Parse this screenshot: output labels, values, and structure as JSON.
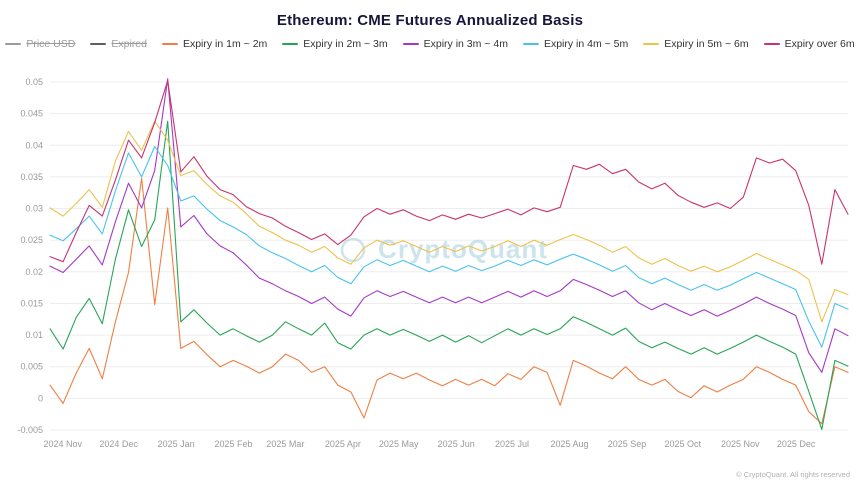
{
  "title": "Ethereum: CME Futures Annualized Basis",
  "watermark": "CryptoQuant",
  "copyright": "© CryptoQuant. All rights reserved",
  "legend": [
    {
      "label": "Price USD",
      "color": "#9b9b9b",
      "disabled": true
    },
    {
      "label": "Expired",
      "color": "#5f5f5f",
      "disabled": true
    },
    {
      "label": "Expiry in 1m ~ 2m",
      "color": "#ef7f42",
      "disabled": false
    },
    {
      "label": "Expiry in 2m ~ 3m",
      "color": "#27a457",
      "disabled": false
    },
    {
      "label": "Expiry in 3m ~ 4m",
      "color": "#a637c6",
      "disabled": false
    },
    {
      "label": "Expiry in 4m ~ 5m",
      "color": "#49c3ee",
      "disabled": false
    },
    {
      "label": "Expiry in 5m ~ 6m",
      "color": "#eec14e",
      "disabled": false
    },
    {
      "label": "Expiry over 6m",
      "color": "#c9336f",
      "disabled": false
    }
  ],
  "chart_data": {
    "type": "line",
    "title": "Ethereum: CME Futures Annualized Basis",
    "xlabel": "",
    "ylabel": "",
    "ylim": [
      -0.005,
      0.05
    ],
    "grid": "horizontal",
    "legend_position": "top",
    "yticks": [
      {
        "v": 0.05,
        "label": "0.05"
      },
      {
        "v": 0.045,
        "label": "0.045"
      },
      {
        "v": 0.04,
        "label": "0.04"
      },
      {
        "v": 0.035,
        "label": "0.035"
      },
      {
        "v": 0.03,
        "label": "0.03"
      },
      {
        "v": 0.025,
        "label": "0.025"
      },
      {
        "v": 0.02,
        "label": "0.02"
      },
      {
        "v": 0.015,
        "label": "0.015"
      },
      {
        "v": 0.01,
        "label": "0.01"
      },
      {
        "v": 0.005,
        "label": "0.005"
      },
      {
        "v": 0,
        "label": "0"
      },
      {
        "v": -0.005,
        "label": "-0.005"
      }
    ],
    "xticks": [
      {
        "pos": 0.016,
        "label": "2024 Nov"
      },
      {
        "pos": 0.086,
        "label": "2024 Dec"
      },
      {
        "pos": 0.158,
        "label": "2025 Jan"
      },
      {
        "pos": 0.23,
        "label": "2025 Feb"
      },
      {
        "pos": 0.295,
        "label": "2025 Mar"
      },
      {
        "pos": 0.367,
        "label": "2025 Apr"
      },
      {
        "pos": 0.437,
        "label": "2025 May"
      },
      {
        "pos": 0.509,
        "label": "2025 Jun"
      },
      {
        "pos": 0.579,
        "label": "2025 Jul"
      },
      {
        "pos": 0.651,
        "label": "2025 Aug"
      },
      {
        "pos": 0.723,
        "label": "2025 Sep"
      },
      {
        "pos": 0.793,
        "label": "2025 Oct"
      },
      {
        "pos": 0.865,
        "label": "2025 Nov"
      },
      {
        "pos": 0.935,
        "label": "2025 Dec"
      }
    ],
    "x_note": "weekly samples, 2024-10-25 through 2025-12-26, evenly spaced",
    "series": [
      {
        "name": "Expiry in 1m ~ 2m",
        "color": "#ef7f42",
        "values": [
          0.0021,
          -0.0008,
          0.004,
          0.0079,
          0.0031,
          0.0121,
          0.0199,
          0.0348,
          0.0148,
          0.0301,
          0.0079,
          0.009,
          0.0069,
          0.005,
          0.006,
          0.0051,
          0.004,
          0.005,
          0.007,
          0.006,
          0.0041,
          0.005,
          0.0021,
          0.001,
          -0.0031,
          0.0029,
          0.004,
          0.0031,
          0.004,
          0.0029,
          0.002,
          0.003,
          0.0021,
          0.003,
          0.002,
          0.0039,
          0.003,
          0.005,
          0.0041,
          -0.0011,
          0.006,
          0.0051,
          0.004,
          0.0031,
          0.005,
          0.003,
          0.0021,
          0.003,
          0.0011,
          0.0001,
          0.002,
          0.001,
          0.0021,
          0.003,
          0.005,
          0.0041,
          0.003,
          0.0021,
          -0.0021,
          -0.004,
          0.005,
          0.0041
        ]
      },
      {
        "name": "Expiry in 2m ~ 3m",
        "color": "#27a457",
        "values": [
          0.011,
          0.0078,
          0.0128,
          0.0158,
          0.0118,
          0.022,
          0.0298,
          0.024,
          0.0282,
          0.0438,
          0.0121,
          0.014,
          0.0119,
          0.01,
          0.011,
          0.0099,
          0.0089,
          0.01,
          0.0121,
          0.011,
          0.01,
          0.0119,
          0.0088,
          0.0078,
          0.01,
          0.011,
          0.01,
          0.0109,
          0.01,
          0.009,
          0.01,
          0.0089,
          0.0099,
          0.0088,
          0.0099,
          0.011,
          0.01,
          0.011,
          0.0101,
          0.011,
          0.0129,
          0.012,
          0.011,
          0.01,
          0.0111,
          0.009,
          0.008,
          0.0089,
          0.0079,
          0.007,
          0.008,
          0.007,
          0.0079,
          0.0089,
          0.01,
          0.009,
          0.0081,
          0.007,
          0.0011,
          -0.0049,
          0.006,
          0.0051
        ]
      },
      {
        "name": "Expiry in 3m ~ 4m",
        "color": "#a637c6",
        "values": [
          0.0209,
          0.0199,
          0.022,
          0.0241,
          0.0211,
          0.0279,
          0.034,
          0.0301,
          0.036,
          0.0505,
          0.0271,
          0.0289,
          0.026,
          0.0241,
          0.023,
          0.0211,
          0.019,
          0.0181,
          0.017,
          0.0161,
          0.015,
          0.016,
          0.0141,
          0.013,
          0.0159,
          0.017,
          0.0161,
          0.0169,
          0.016,
          0.0151,
          0.016,
          0.0151,
          0.016,
          0.0151,
          0.016,
          0.0169,
          0.016,
          0.017,
          0.0161,
          0.017,
          0.0188,
          0.018,
          0.0171,
          0.0161,
          0.017,
          0.0151,
          0.014,
          0.015,
          0.014,
          0.0131,
          0.014,
          0.013,
          0.0139,
          0.0149,
          0.016,
          0.015,
          0.0141,
          0.0131,
          0.0072,
          0.0041,
          0.011,
          0.0099
        ]
      },
      {
        "name": "Expiry in 4m ~ 5m",
        "color": "#49c3ee",
        "values": [
          0.0258,
          0.0249,
          0.0268,
          0.0288,
          0.026,
          0.0328,
          0.0388,
          0.035,
          0.0398,
          0.0368,
          0.0312,
          0.032,
          0.0299,
          0.0281,
          0.0271,
          0.0259,
          0.0241,
          0.023,
          0.0221,
          0.021,
          0.02,
          0.021,
          0.0191,
          0.0181,
          0.0208,
          0.0219,
          0.021,
          0.0218,
          0.0209,
          0.02,
          0.0209,
          0.0201,
          0.021,
          0.0202,
          0.0209,
          0.0218,
          0.021,
          0.0219,
          0.0211,
          0.022,
          0.0228,
          0.022,
          0.0211,
          0.0201,
          0.021,
          0.0191,
          0.0181,
          0.019,
          0.018,
          0.0171,
          0.018,
          0.0171,
          0.0179,
          0.0189,
          0.0199,
          0.019,
          0.0181,
          0.0172,
          0.0122,
          0.0081,
          0.015,
          0.0141
        ]
      },
      {
        "name": "Expiry in 5m ~ 6m",
        "color": "#eec14e",
        "values": [
          0.0301,
          0.0288,
          0.0308,
          0.033,
          0.0302,
          0.0375,
          0.0422,
          0.0392,
          0.0438,
          0.0408,
          0.0352,
          0.036,
          0.0338,
          0.032,
          0.031,
          0.0292,
          0.0272,
          0.0262,
          0.025,
          0.0242,
          0.0231,
          0.024,
          0.0222,
          0.0212,
          0.0238,
          0.025,
          0.0242,
          0.0249,
          0.024,
          0.0231,
          0.024,
          0.0232,
          0.0241,
          0.0233,
          0.024,
          0.0249,
          0.024,
          0.025,
          0.0242,
          0.0251,
          0.0259,
          0.0251,
          0.0242,
          0.0231,
          0.024,
          0.0222,
          0.0212,
          0.0221,
          0.021,
          0.0201,
          0.0209,
          0.02,
          0.0208,
          0.0218,
          0.0229,
          0.022,
          0.0211,
          0.0202,
          0.0188,
          0.0121,
          0.0172,
          0.0164
        ]
      },
      {
        "name": "Expiry over 6m",
        "color": "#c9336f",
        "values": [
          0.0224,
          0.0216,
          0.0262,
          0.0305,
          0.0288,
          0.0345,
          0.0408,
          0.038,
          0.0436,
          0.0502,
          0.0358,
          0.0382,
          0.0351,
          0.033,
          0.0322,
          0.0303,
          0.0292,
          0.0285,
          0.0272,
          0.0262,
          0.0251,
          0.026,
          0.0243,
          0.0258,
          0.0287,
          0.03,
          0.0291,
          0.0298,
          0.0288,
          0.0281,
          0.029,
          0.0283,
          0.0291,
          0.0285,
          0.0292,
          0.0299,
          0.029,
          0.0301,
          0.0295,
          0.0302,
          0.0368,
          0.0362,
          0.037,
          0.0355,
          0.0362,
          0.0342,
          0.0331,
          0.034,
          0.0321,
          0.031,
          0.0302,
          0.0309,
          0.03,
          0.0318,
          0.038,
          0.0372,
          0.0378,
          0.036,
          0.0305,
          0.0212,
          0.033,
          0.0291
        ]
      }
    ]
  }
}
